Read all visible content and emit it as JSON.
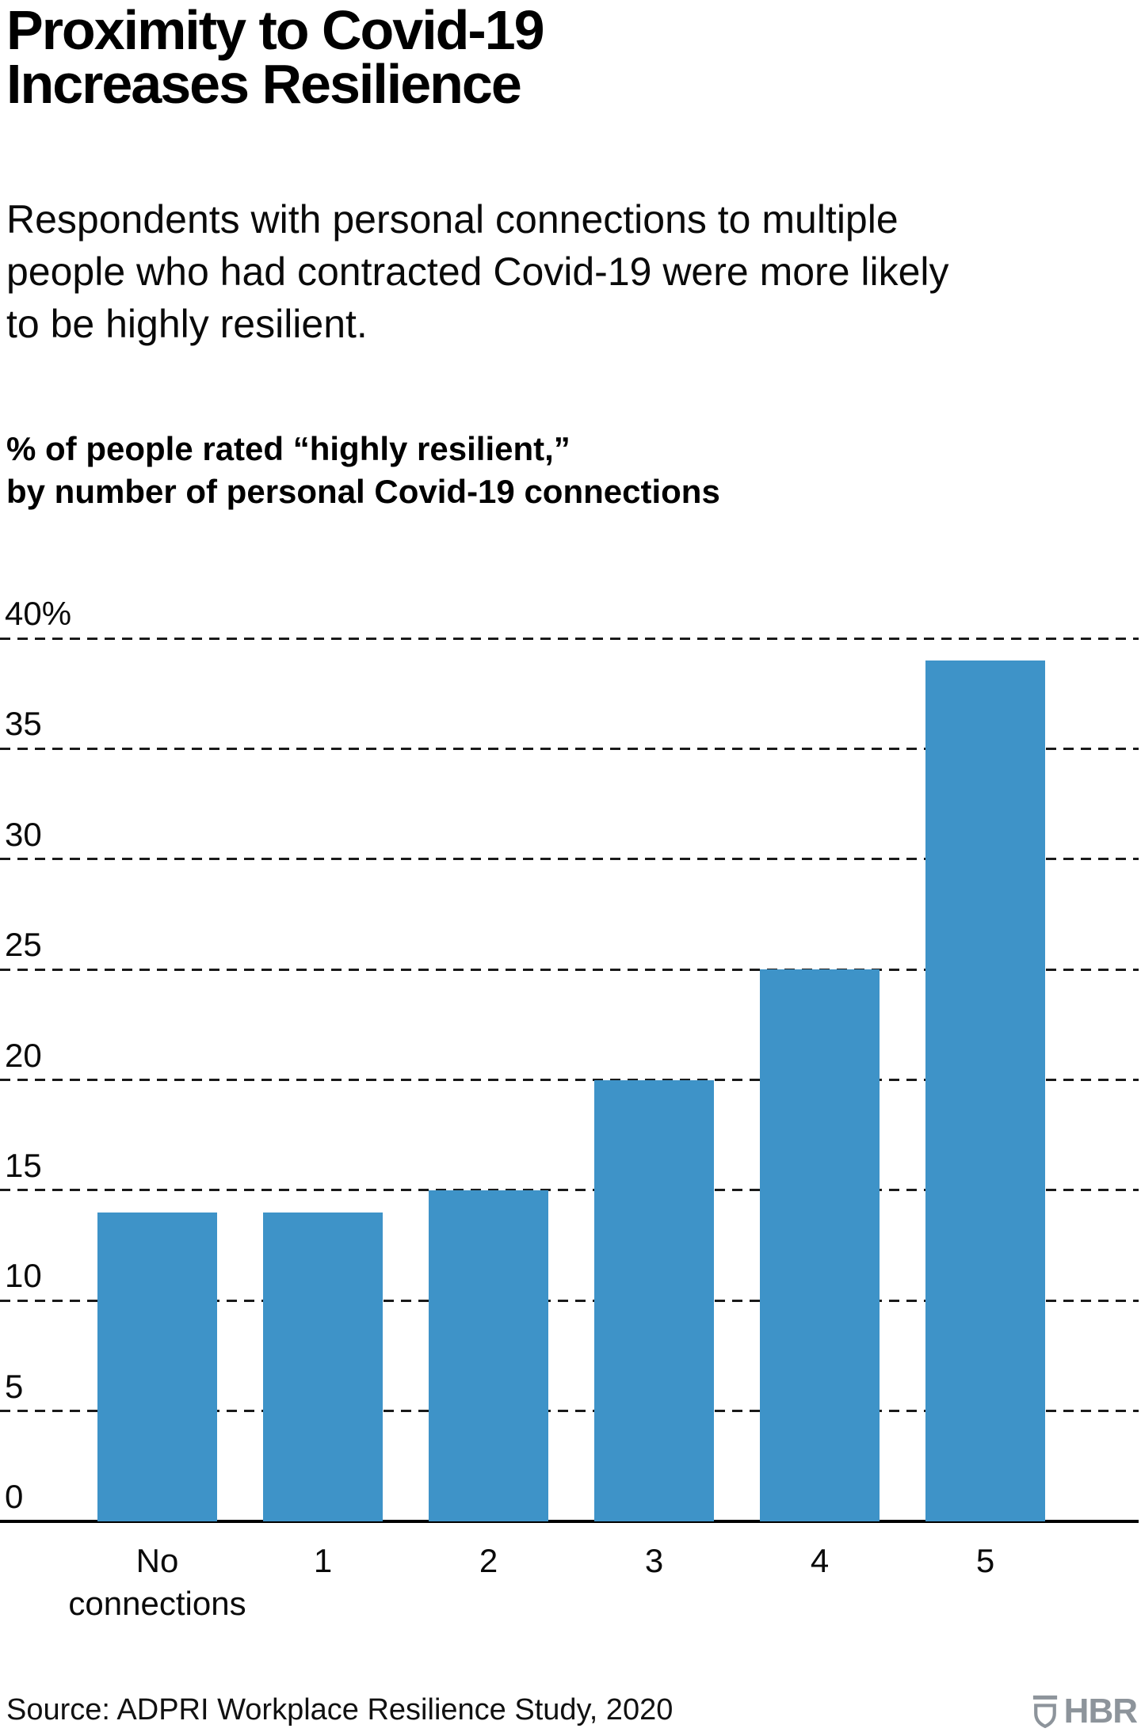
{
  "header": {
    "title": "Proximity to Covid-19\nIncreases Resilience",
    "subtitle": "Respondents with personal connections to multiple\npeople who had contracted Covid-19 were more likely\nto be highly resilient."
  },
  "chart_data": {
    "type": "bar",
    "title": "% of people rated “highly resilient,”\nby number of personal Covid-19 connections",
    "categories": [
      "No\nconnections",
      "1",
      "2",
      "3",
      "4",
      "5"
    ],
    "values": [
      14,
      14,
      15,
      20,
      25,
      39
    ],
    "xlabel": "",
    "ylabel": "% of people rated highly resilient",
    "ylim": [
      0,
      40
    ],
    "ytick_interval": 5,
    "ytick_labels": [
      "0",
      "5",
      "10",
      "15",
      "20",
      "25",
      "30",
      "35",
      "40%"
    ],
    "grid": "horizontal-dashed",
    "legend": "none",
    "bar_color": "#3e93c8"
  },
  "footer": {
    "source": "Source: ADPRI Workplace Resilience Study, 2020",
    "logo_text": "HBR"
  },
  "colors": {
    "bar": "#3e93c8",
    "grid": "#1a1a1a",
    "axis": "#000000",
    "text": "#000000",
    "logo": "#8d949b"
  }
}
